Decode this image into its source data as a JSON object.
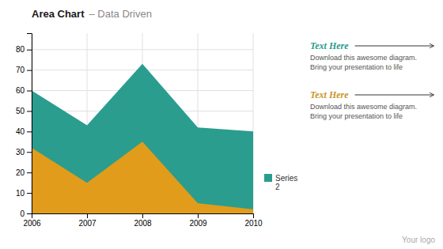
{
  "chart_data": {
    "type": "area",
    "title": "Area Chart",
    "subtitle": "– Data Driven",
    "categories": [
      "2006",
      "2007",
      "2008",
      "2009",
      "2010"
    ],
    "series": [
      {
        "name": "Series\n2",
        "color": "#2a9d8f",
        "values": [
          60,
          43,
          73,
          42,
          40
        ]
      },
      {
        "color": "#e09c1a",
        "values": [
          32,
          15,
          35,
          5,
          2
        ]
      }
    ],
    "ylim": [
      0,
      88
    ],
    "yticks": [
      0,
      10,
      20,
      30,
      40,
      50,
      60,
      70,
      80
    ],
    "grid": true,
    "stacked": false,
    "annotations": [
      {
        "title": "Text Here",
        "color": "#2a9d8f",
        "lines": [
          "Download this awesome diagram.",
          "Bring your presentation to life"
        ]
      },
      {
        "title": "Text Here",
        "color": "#c8962a",
        "lines": [
          "Download this awesome diagram.",
          "Bring your presentation to life"
        ]
      }
    ],
    "footer": "Your logo"
  }
}
